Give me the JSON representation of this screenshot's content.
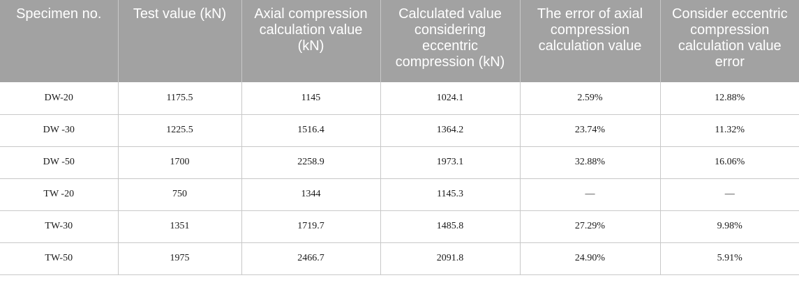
{
  "table": {
    "headers": [
      "Specimen no.",
      "Test value (kN)",
      "Axial compression calculation value (kN)",
      "Calculated value considering eccentric compression (kN)",
      "The error of axial compression calculation value",
      "Consider eccentric compression calculation value error"
    ],
    "rows": [
      [
        "DW-20",
        "1175.5",
        "1145",
        "1024.1",
        "2.59%",
        "12.88%"
      ],
      [
        "DW -30",
        "1225.5",
        "1516.4",
        "1364.2",
        "23.74%",
        "11.32%"
      ],
      [
        "DW -50",
        "1700",
        "2258.9",
        "1973.1",
        "32.88%",
        "16.06%"
      ],
      [
        "TW -20",
        "750",
        "1344",
        "1145.3",
        "—",
        "—"
      ],
      [
        "TW-30",
        "1351",
        "1719.7",
        "1485.8",
        "27.29%",
        "9.98%"
      ],
      [
        "TW-50",
        "1975",
        "2466.7",
        "2091.8",
        "24.90%",
        "5.91%"
      ]
    ]
  },
  "colors": {
    "header_background": "#a2a2a2",
    "header_text": "#ffffff",
    "grid_lines": "#c8c8c8",
    "body_text": "#1a1a1a"
  }
}
